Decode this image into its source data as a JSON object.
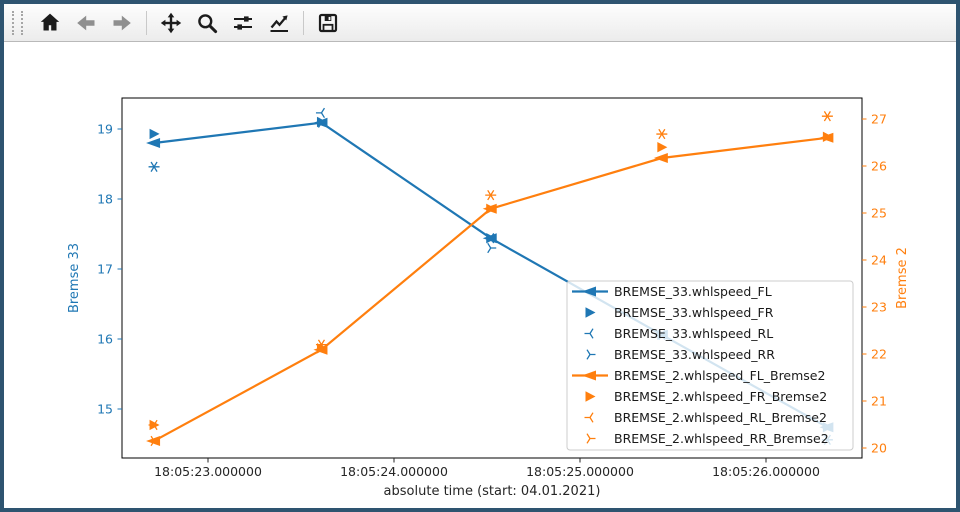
{
  "window": {
    "border_color": "#2e5470",
    "background": "#ffffff"
  },
  "toolbar": {
    "buttons": [
      {
        "name": "home",
        "icon": "home-icon",
        "enabled": true
      },
      {
        "name": "back",
        "icon": "arrow-left-icon",
        "enabled": false
      },
      {
        "name": "forward",
        "icon": "arrow-right-icon",
        "enabled": false
      },
      {
        "name": "pan",
        "icon": "move-arrows-icon",
        "enabled": true
      },
      {
        "name": "zoom",
        "icon": "magnifier-icon",
        "enabled": true
      },
      {
        "name": "subplots",
        "icon": "sliders-icon",
        "enabled": true
      },
      {
        "name": "customize",
        "icon": "line-chart-icon",
        "enabled": true
      },
      {
        "name": "save",
        "icon": "floppy-disk-icon",
        "enabled": true
      }
    ]
  },
  "chart_data": {
    "type": "line",
    "title": "",
    "xlabel": "absolute time (start: 04.01.2021)",
    "x_tick_labels": [
      "18:05:23.000000",
      "18:05:24.000000",
      "18:05:25.000000",
      "18:05:26.000000"
    ],
    "x_ticks_seconds": [
      23,
      24,
      25,
      26
    ],
    "x": [
      "18:05:22.71",
      "18:05:23.61",
      "18:05:24.52",
      "18:05:25.44",
      "18:05:26.33"
    ],
    "x_seconds": [
      22.71,
      23.61,
      24.52,
      25.44,
      26.33
    ],
    "grid": false,
    "legend_position": "lower right",
    "axes": {
      "left": {
        "label": "Bremse 33",
        "color": "#1f77b4",
        "ticks": [
          15,
          16,
          17,
          18,
          19
        ],
        "range": [
          14.3,
          19.44
        ]
      },
      "right": {
        "label": "Bremse 2",
        "color": "#ff7f0e",
        "ticks": [
          20,
          21,
          22,
          23,
          24,
          25,
          26,
          27
        ],
        "range": [
          19.79,
          27.45
        ]
      }
    },
    "series": [
      {
        "name": "BREMSE_33.whlspeed_FL",
        "axis": "left",
        "color": "#1f77b4",
        "marker": "caret-left",
        "line": true,
        "values": [
          18.8,
          19.09,
          17.44,
          16.06,
          14.74
        ]
      },
      {
        "name": "BREMSE_33.whlspeed_FR",
        "axis": "left",
        "color": "#1f77b4",
        "marker": "triangle-right",
        "line": false,
        "values": [
          18.93,
          19.1,
          17.44,
          16.06,
          14.74
        ]
      },
      {
        "name": "BREMSE_33.whlspeed_RL",
        "axis": "left",
        "color": "#1f77b4",
        "marker": "tri-left",
        "line": false,
        "values": [
          18.46,
          19.23,
          17.44,
          16.06,
          14.56
        ]
      },
      {
        "name": "BREMSE_33.whlspeed_RR",
        "axis": "left",
        "color": "#1f77b4",
        "marker": "tri-right",
        "line": false,
        "values": [
          18.46,
          19.09,
          17.3,
          16.06,
          14.56
        ]
      },
      {
        "name": "BREMSE_2.whlspeed_FL_Bremse2",
        "axis": "right",
        "color": "#ff7f0e",
        "marker": "caret-left",
        "line": true,
        "values": [
          20.15,
          22.09,
          25.09,
          26.17,
          26.6
        ]
      },
      {
        "name": "BREMSE_2.whlspeed_FR_Bremse2",
        "axis": "right",
        "color": "#ff7f0e",
        "marker": "triangle-right",
        "line": false,
        "values": [
          20.49,
          22.12,
          25.09,
          26.4,
          26.62
        ]
      },
      {
        "name": "BREMSE_2.whlspeed_RL_Bremse2",
        "axis": "right",
        "color": "#ff7f0e",
        "marker": "tri-left",
        "line": false,
        "values": [
          20.49,
          22.2,
          25.38,
          26.68,
          27.06
        ]
      },
      {
        "name": "BREMSE_2.whlspeed_RR_Bremse2",
        "axis": "right",
        "color": "#ff7f0e",
        "marker": "tri-right",
        "line": false,
        "values": [
          20.15,
          22.2,
          25.38,
          26.68,
          27.06
        ]
      }
    ]
  }
}
